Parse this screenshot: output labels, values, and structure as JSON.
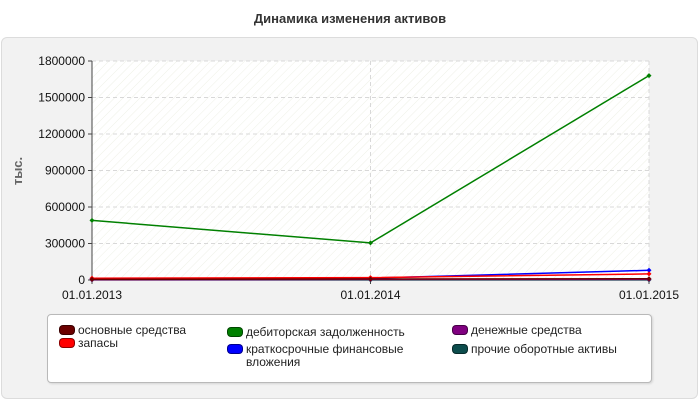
{
  "chart_data": {
    "type": "line",
    "title": "Динамика изменения активов",
    "ylabel": "тыс.",
    "xlabel": "",
    "x": [
      "01.01.2013",
      "01.01.2014",
      "01.01.2015"
    ],
    "ylim": [
      0,
      1800000
    ],
    "yticks": [
      0,
      300000,
      600000,
      900000,
      1200000,
      1500000,
      1800000
    ],
    "y_tick_labels": [
      "0",
      "300000",
      "600000",
      "900000",
      "1200000",
      "1500000",
      "1800000"
    ],
    "grid": true,
    "legend_position": "bottom",
    "series": [
      {
        "name": "основные средства",
        "color": "#6b0000",
        "values": [
          5000,
          8000,
          10000
        ]
      },
      {
        "name": "запасы",
        "color": "#ff0000",
        "values": [
          15000,
          20000,
          50000
        ]
      },
      {
        "name": "дебиторская задолженность",
        "color": "#008000",
        "values": [
          490000,
          305000,
          1680000
        ]
      },
      {
        "name": "краткосрочные финансовые вложения",
        "color": "#0000ff",
        "values": [
          10000,
          15000,
          80000
        ]
      },
      {
        "name": "денежные средства",
        "color": "#800080",
        "values": [
          2000,
          5000,
          5000
        ]
      },
      {
        "name": "прочие оборотные активы",
        "color": "#0d4d4d",
        "values": [
          1000,
          1000,
          1000
        ]
      }
    ]
  }
}
